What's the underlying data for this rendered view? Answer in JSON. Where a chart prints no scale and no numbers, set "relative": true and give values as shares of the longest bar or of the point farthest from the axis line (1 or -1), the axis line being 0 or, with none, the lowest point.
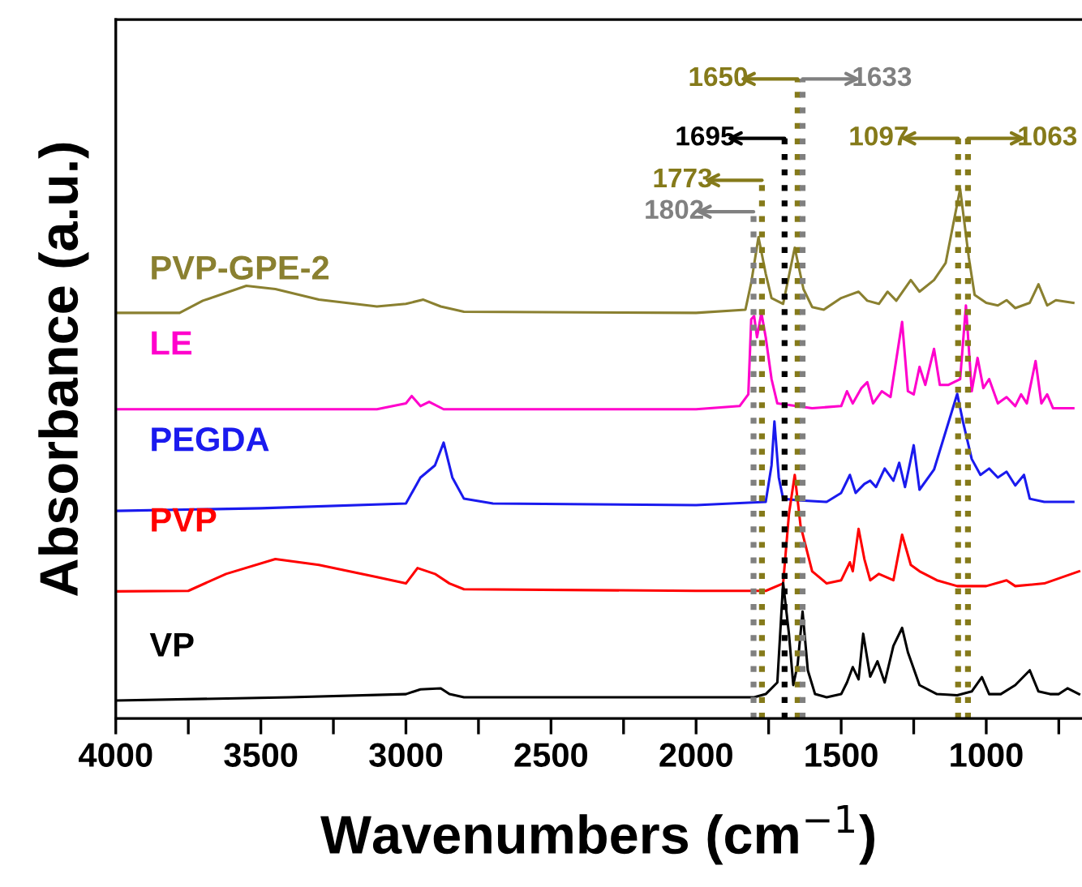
{
  "chart_data": {
    "type": "line",
    "relative": true,
    "xlabel": "Wavenumbers (cm$^{−1}$)",
    "ylabel": "Absorbance (a.u.)",
    "xlim": [
      4000,
      670
    ],
    "xticks": [
      4000,
      {
        "value": 3750,
        "label": null
      },
      3500,
      {
        "value": 3250,
        "label": null
      },
      3000,
      {
        "value": 2750,
        "label": null
      },
      2500,
      {
        "value": 2250,
        "label": null
      },
      2000,
      {
        "value": 1750,
        "label": null
      },
      1500,
      {
        "value": 1250,
        "label": null
      },
      1000,
      {
        "value": 750,
        "label": null
      }
    ],
    "tick_labels": "x",
    "grid": false,
    "legend": false,
    "marker": "none",
    "line_style": "solid",
    "series": [
      {
        "name": "PVP-GPE-2",
        "color": "#8a8030",
        "x": [
          4000,
          3780,
          3700,
          3550,
          3450,
          3300,
          3100,
          3000,
          2940,
          2880,
          2800,
          2000,
          1830,
          1810,
          1785,
          1760,
          1740,
          1700,
          1660,
          1630,
          1600,
          1560,
          1500,
          1470,
          1440,
          1410,
          1370,
          1340,
          1310,
          1260,
          1230,
          1180,
          1140,
          1090,
          1060,
          1040,
          1000,
          960,
          930,
          900,
          850,
          820,
          790,
          760,
          700
        ],
        "values": [
          0.766,
          0.766,
          0.789,
          0.817,
          0.811,
          0.791,
          0.778,
          0.783,
          0.791,
          0.778,
          0.768,
          0.766,
          0.772,
          0.823,
          0.909,
          0.84,
          0.794,
          0.783,
          0.889,
          0.811,
          0.777,
          0.772,
          0.794,
          0.8,
          0.806,
          0.789,
          0.783,
          0.806,
          0.789,
          0.828,
          0.806,
          0.828,
          0.86,
          1.0,
          0.87,
          0.8,
          0.785,
          0.78,
          0.79,
          0.775,
          0.785,
          0.82,
          0.78,
          0.79,
          0.785
        ]
      },
      {
        "name": "LE",
        "color": "#ff00cc",
        "x": [
          4000,
          3100,
          3000,
          2980,
          2950,
          2920,
          2870,
          2000,
          1850,
          1820,
          1810,
          1800,
          1790,
          1775,
          1760,
          1740,
          1720,
          1600,
          1500,
          1480,
          1460,
          1430,
          1410,
          1390,
          1360,
          1330,
          1290,
          1270,
          1250,
          1230,
          1210,
          1180,
          1160,
          1130,
          1090,
          1070,
          1050,
          1030,
          1010,
          990,
          960,
          930,
          900,
          880,
          860,
          830,
          810,
          790,
          770,
          700
        ],
        "values": [
          0.584,
          0.584,
          0.595,
          0.609,
          0.59,
          0.598,
          0.584,
          0.584,
          0.59,
          0.612,
          0.754,
          0.76,
          0.72,
          0.766,
          0.72,
          0.641,
          0.595,
          0.586,
          0.59,
          0.618,
          0.595,
          0.624,
          0.635,
          0.595,
          0.618,
          0.607,
          0.749,
          0.618,
          0.612,
          0.664,
          0.63,
          0.698,
          0.63,
          0.63,
          0.641,
          0.78,
          0.618,
          0.681,
          0.624,
          0.641,
          0.595,
          0.607,
          0.59,
          0.612,
          0.595,
          0.675,
          0.595,
          0.612,
          0.586,
          0.586
        ]
      },
      {
        "name": "PEGDA",
        "color": "#1a1aee",
        "x": [
          4000,
          3500,
          3000,
          2950,
          2900,
          2870,
          2840,
          2800,
          2700,
          2000,
          1760,
          1740,
          1730,
          1715,
          1700,
          1650,
          1550,
          1500,
          1470,
          1450,
          1420,
          1400,
          1380,
          1350,
          1320,
          1300,
          1280,
          1250,
          1230,
          1180,
          1100,
          1080,
          1050,
          1020,
          990,
          960,
          930,
          900,
          870,
          850,
          800,
          700
        ],
        "values": [
          0.392,
          0.397,
          0.406,
          0.455,
          0.478,
          0.521,
          0.455,
          0.415,
          0.406,
          0.403,
          0.409,
          0.478,
          0.561,
          0.455,
          0.415,
          0.412,
          0.409,
          0.426,
          0.46,
          0.426,
          0.443,
          0.449,
          0.437,
          0.472,
          0.449,
          0.483,
          0.437,
          0.516,
          0.432,
          0.47,
          0.613,
          0.56,
          0.49,
          0.46,
          0.472,
          0.455,
          0.466,
          0.44,
          0.46,
          0.415,
          0.409,
          0.409
        ]
      },
      {
        "name": "PVP",
        "color": "#ff0000",
        "x": [
          4000,
          3750,
          3620,
          3450,
          3300,
          3100,
          3000,
          2960,
          2900,
          2850,
          2800,
          2000,
          1760,
          1700,
          1680,
          1660,
          1640,
          1600,
          1550,
          1500,
          1470,
          1460,
          1440,
          1420,
          1400,
          1370,
          1320,
          1290,
          1260,
          1230,
          1170,
          1100,
          1000,
          930,
          900,
          800,
          680
        ],
        "values": [
          0.24,
          0.241,
          0.273,
          0.301,
          0.29,
          0.267,
          0.255,
          0.284,
          0.273,
          0.255,
          0.244,
          0.241,
          0.241,
          0.255,
          0.386,
          0.46,
          0.364,
          0.278,
          0.255,
          0.261,
          0.295,
          0.278,
          0.358,
          0.301,
          0.261,
          0.273,
          0.261,
          0.347,
          0.29,
          0.278,
          0.261,
          0.25,
          0.25,
          0.261,
          0.25,
          0.255,
          0.278
        ]
      },
      {
        "name": "VP",
        "color": "#000000",
        "x": [
          4000,
          3400,
          3000,
          2950,
          2880,
          2850,
          2800,
          1800,
          1760,
          1720,
          1700,
          1680,
          1665,
          1650,
          1633,
          1615,
          1590,
          1550,
          1500,
          1480,
          1460,
          1440,
          1424,
          1400,
          1375,
          1350,
          1320,
          1290,
          1270,
          1230,
          1170,
          1100,
          1050,
          1015,
          990,
          950,
          900,
          850,
          820,
          780,
          750,
          720,
          680
        ],
        "values": [
          0.034,
          0.04,
          0.046,
          0.055,
          0.057,
          0.046,
          0.04,
          0.04,
          0.046,
          0.068,
          0.256,
          0.16,
          0.063,
          0.102,
          0.202,
          0.091,
          0.046,
          0.04,
          0.046,
          0.068,
          0.097,
          0.074,
          0.16,
          0.079,
          0.108,
          0.068,
          0.137,
          0.171,
          0.125,
          0.063,
          0.046,
          0.044,
          0.051,
          0.078,
          0.046,
          0.046,
          0.063,
          0.091,
          0.051,
          0.046,
          0.046,
          0.057,
          0.046
        ]
      }
    ],
    "ref_lines": [
      {
        "axis": "x",
        "value": 1802,
        "label": "1802",
        "color": "#808080",
        "line_style": "dotted"
      },
      {
        "axis": "x",
        "value": 1773,
        "label": "1773",
        "color": "#857a1a",
        "line_style": "dotted"
      },
      {
        "axis": "x",
        "value": 1695,
        "label": "1695",
        "color": "#000000",
        "line_style": "dotted"
      },
      {
        "axis": "x",
        "value": 1650,
        "label": "1650",
        "color": "#857a1a",
        "line_style": "dotted"
      },
      {
        "axis": "x",
        "value": 1633,
        "label": "1633",
        "color": "#808080",
        "line_style": "dotted"
      },
      {
        "axis": "x",
        "value": 1097,
        "label": "1097",
        "color": "#857a1a",
        "line_style": "dotted"
      },
      {
        "axis": "x",
        "value": 1063,
        "label": "1063",
        "color": "#857a1a",
        "line_style": "dotted"
      }
    ]
  }
}
